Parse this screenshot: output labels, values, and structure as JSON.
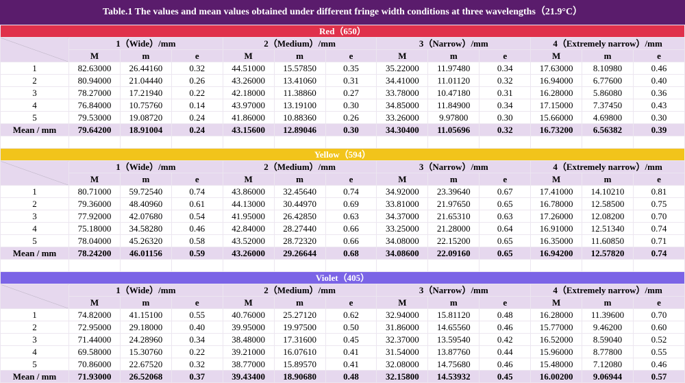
{
  "title": "Table.1 The values and mean values obtained under different fringe width conditions at three wavelengths（21.9°C）",
  "sections": [
    {
      "name": "Red（650）",
      "color": "#e0314b",
      "groups": [
        "1（Wide）/mm",
        "2（Medium）/mm",
        "3（Narrow）/mm",
        "4（Extremely narrow）/mm"
      ],
      "columns": [
        "M",
        "m",
        "e",
        "M",
        "m",
        "e",
        "M",
        "m",
        "e",
        "M",
        "m",
        "e"
      ],
      "rows": [
        {
          "label": "1",
          "values": [
            "82.63000",
            "26.44160",
            "0.32",
            "44.51000",
            "15.57850",
            "0.35",
            "35.22000",
            "11.97480",
            "0.34",
            "17.63000",
            "8.10980",
            "0.46"
          ]
        },
        {
          "label": "2",
          "values": [
            "80.94000",
            "21.04440",
            "0.26",
            "43.26000",
            "13.41060",
            "0.31",
            "34.41000",
            "11.01120",
            "0.32",
            "16.94000",
            "6.77600",
            "0.40"
          ]
        },
        {
          "label": "3",
          "values": [
            "78.27000",
            "17.21940",
            "0.22",
            "42.18000",
            "11.38860",
            "0.27",
            "33.78000",
            "10.47180",
            "0.31",
            "16.28000",
            "5.86080",
            "0.36"
          ]
        },
        {
          "label": "4",
          "values": [
            "76.84000",
            "10.75760",
            "0.14",
            "43.97000",
            "13.19100",
            "0.30",
            "34.85000",
            "11.84900",
            "0.34",
            "17.15000",
            "7.37450",
            "0.43"
          ]
        },
        {
          "label": "5",
          "values": [
            "79.53000",
            "19.08720",
            "0.24",
            "41.86000",
            "10.88360",
            "0.26",
            "33.26000",
            "9.97800",
            "0.30",
            "15.66000",
            "4.69800",
            "0.30"
          ]
        }
      ],
      "mean": {
        "label": "Mean / mm",
        "values": [
          "79.64200",
          "18.91004",
          "0.24",
          "43.15600",
          "12.89046",
          "0.30",
          "34.30400",
          "11.05696",
          "0.32",
          "16.73200",
          "6.56382",
          "0.39"
        ]
      }
    },
    {
      "name": "Yellow（594）",
      "color": "#f2c41b",
      "groups": [
        "1（Wide）/mm",
        "2（Medium）/mm",
        "3（Narrow）/mm",
        "4（Extremely narrow）/mm"
      ],
      "columns": [
        "M",
        "m",
        "e",
        "M",
        "m",
        "e",
        "M",
        "m",
        "e",
        "M",
        "m",
        "e"
      ],
      "rows": [
        {
          "label": "1",
          "values": [
            "80.71000",
            "59.72540",
            "0.74",
            "43.86000",
            "32.45640",
            "0.74",
            "34.92000",
            "23.39640",
            "0.67",
            "17.41000",
            "14.10210",
            "0.81"
          ]
        },
        {
          "label": "2",
          "values": [
            "79.36000",
            "48.40960",
            "0.61",
            "44.13000",
            "30.44970",
            "0.69",
            "33.81000",
            "21.97650",
            "0.65",
            "16.78000",
            "12.58500",
            "0.75"
          ]
        },
        {
          "label": "3",
          "values": [
            "77.92000",
            "42.07680",
            "0.54",
            "41.95000",
            "26.42850",
            "0.63",
            "34.37000",
            "21.65310",
            "0.63",
            "17.26000",
            "12.08200",
            "0.70"
          ]
        },
        {
          "label": "4",
          "values": [
            "75.18000",
            "34.58280",
            "0.46",
            "42.84000",
            "28.27440",
            "0.66",
            "33.25000",
            "21.28000",
            "0.64",
            "16.91000",
            "12.51340",
            "0.74"
          ]
        },
        {
          "label": "5",
          "values": [
            "78.04000",
            "45.26320",
            "0.58",
            "43.52000",
            "28.72320",
            "0.66",
            "34.08000",
            "22.15200",
            "0.65",
            "16.35000",
            "11.60850",
            "0.71"
          ]
        }
      ],
      "mean": {
        "label": "Mean / mm",
        "values": [
          "78.24200",
          "46.01156",
          "0.59",
          "43.26000",
          "29.26644",
          "0.68",
          "34.08600",
          "22.09160",
          "0.65",
          "16.94200",
          "12.57820",
          "0.74"
        ]
      }
    },
    {
      "name": "Violet（405）",
      "color": "#7b64e6",
      "groups": [
        "1（Wide）/mm",
        "2（Medium）/mm",
        "3（Narrow）/mm",
        "4（Extremely narrow）/mm"
      ],
      "columns": [
        "M",
        "m",
        "e",
        "M",
        "m",
        "e",
        "M",
        "m",
        "e",
        "M",
        "m",
        "e"
      ],
      "rows": [
        {
          "label": "1",
          "values": [
            "74.82000",
            "41.15100",
            "0.55",
            "40.76000",
            "25.27120",
            "0.62",
            "32.94000",
            "15.81120",
            "0.48",
            "16.28000",
            "11.39600",
            "0.70"
          ]
        },
        {
          "label": "2",
          "values": [
            "72.95000",
            "29.18000",
            "0.40",
            "39.95000",
            "19.97500",
            "0.50",
            "31.86000",
            "14.65560",
            "0.46",
            "15.77000",
            "9.46200",
            "0.60"
          ]
        },
        {
          "label": "3",
          "values": [
            "71.44000",
            "24.28960",
            "0.34",
            "38.48000",
            "17.31600",
            "0.45",
            "32.37000",
            "13.59540",
            "0.42",
            "16.52000",
            "8.59040",
            "0.52"
          ]
        },
        {
          "label": "4",
          "values": [
            "69.58000",
            "15.30760",
            "0.22",
            "39.21000",
            "16.07610",
            "0.41",
            "31.54000",
            "13.87760",
            "0.44",
            "15.96000",
            "8.77800",
            "0.55"
          ]
        },
        {
          "label": "5",
          "values": [
            "70.86000",
            "22.67520",
            "0.32",
            "38.77000",
            "15.89570",
            "0.41",
            "32.08000",
            "14.75680",
            "0.46",
            "15.48000",
            "7.12080",
            "0.46"
          ]
        }
      ],
      "mean": {
        "label": "Mean / mm",
        "values": [
          "71.93000",
          "26.52068",
          "0.37",
          "39.43400",
          "18.90680",
          "0.48",
          "32.15800",
          "14.53932",
          "0.45",
          "16.00200",
          "9.06944",
          "0.57"
        ]
      }
    }
  ]
}
